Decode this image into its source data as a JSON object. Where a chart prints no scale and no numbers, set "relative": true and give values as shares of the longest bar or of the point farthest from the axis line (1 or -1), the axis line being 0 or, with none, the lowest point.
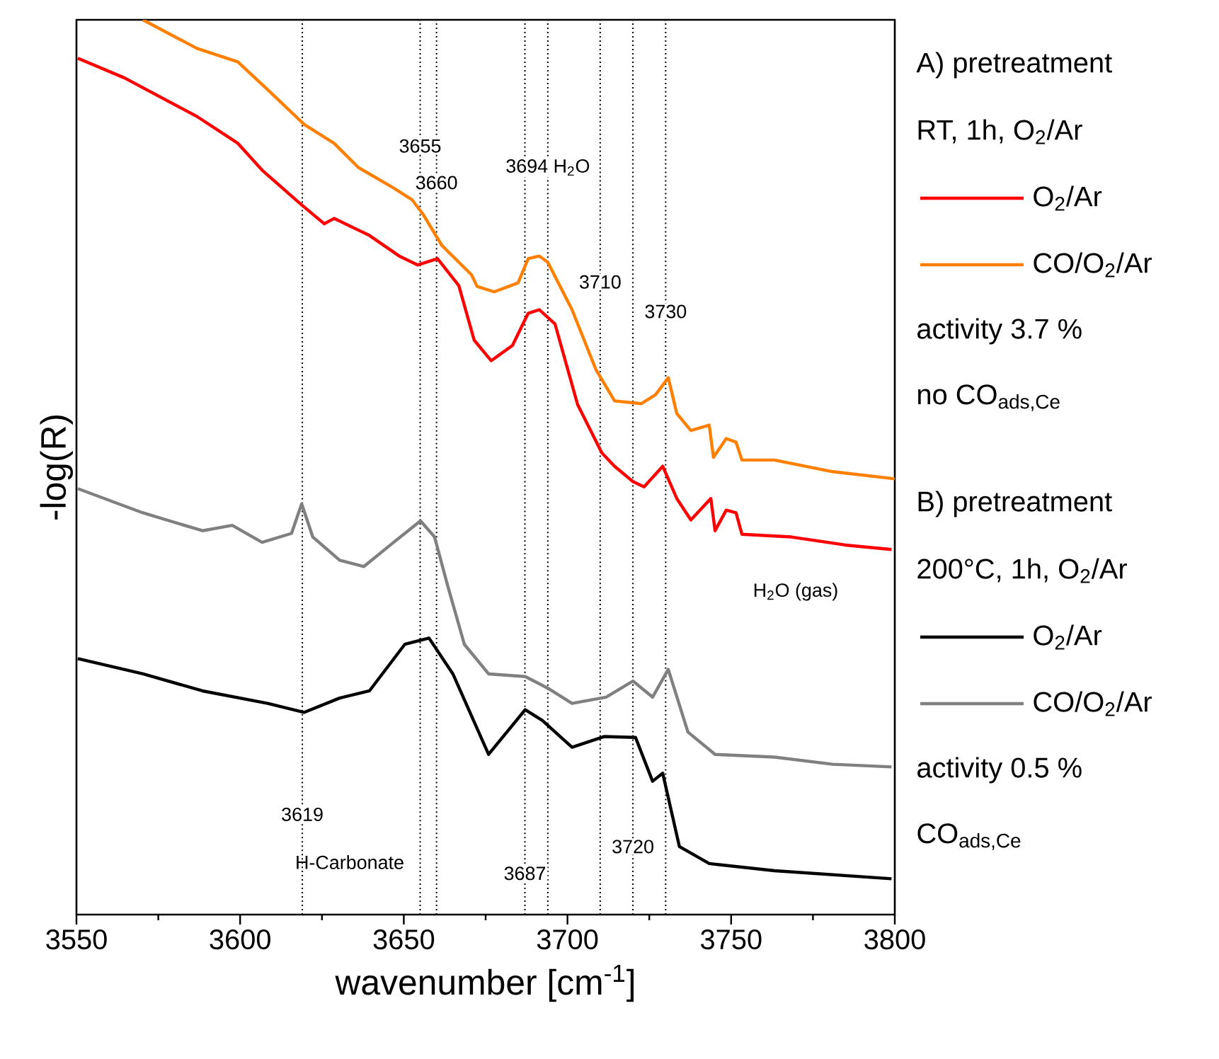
{
  "chart_data": {
    "type": "line",
    "relative": true,
    "xlabel": "wavenumber [cm$^{-1}$]",
    "ylabel": "-log(R)",
    "xlim": [
      3550,
      3800
    ],
    "xticks": [
      3550,
      3600,
      3650,
      3700,
      3750,
      3800
    ],
    "legend": "right",
    "line_style": "solid",
    "marker": "none",
    "series": [
      {
        "name": "O$_{2}$/Ar",
        "color": "#ff0000",
        "x": [
          3550.4,
          3564.7,
          3586.8,
          3599.3,
          3606.7,
          3617.9,
          3625.7,
          3628.7,
          3639.5,
          3648.6,
          3654.2,
          3660.3,
          3666.8,
          3671.5,
          3676.7,
          3683.2,
          3688.0,
          3691.4,
          3696.2,
          3703.1,
          3710.5,
          3714.4,
          3720.0,
          3723.4,
          3729.1,
          3733.4,
          3737.7,
          3743.8,
          3745.1,
          3748.5,
          3751.5,
          3753.3,
          3768.4,
          3784.9,
          3799
        ],
        "values": [
          0.957,
          0.935,
          0.892,
          0.862,
          0.832,
          0.796,
          0.772,
          0.778,
          0.759,
          0.736,
          0.726,
          0.733,
          0.703,
          0.642,
          0.619,
          0.636,
          0.672,
          0.676,
          0.66,
          0.57,
          0.516,
          0.501,
          0.484,
          0.478,
          0.501,
          0.465,
          0.441,
          0.465,
          0.429,
          0.452,
          0.449,
          0.425,
          0.422,
          0.413,
          0.408
        ]
      },
      {
        "name": "CO/O$_{2}$/Ar",
        "color": "#ff8000",
        "x": [
          3570.3,
          3586.8,
          3599.3,
          3608.4,
          3619.6,
          3628.7,
          3636.1,
          3646.9,
          3652.5,
          3656.0,
          3661.6,
          3670.7,
          3672.4,
          3677.6,
          3684.9,
          3688.0,
          3691.4,
          3694.0,
          3701.4,
          3708.7,
          3714.4,
          3722.6,
          3726.9,
          3730.8,
          3733.4,
          3737.7,
          3743.3,
          3744.6,
          3748.5,
          3751.5,
          3753.3,
          3763.2,
          3781.0,
          3800
        ],
        "values": [
          1.0,
          0.968,
          0.953,
          0.922,
          0.883,
          0.862,
          0.835,
          0.812,
          0.799,
          0.782,
          0.748,
          0.715,
          0.702,
          0.696,
          0.706,
          0.733,
          0.736,
          0.729,
          0.676,
          0.609,
          0.574,
          0.571,
          0.581,
          0.6,
          0.56,
          0.541,
          0.547,
          0.511,
          0.532,
          0.528,
          0.508,
          0.508,
          0.495,
          0.487
        ]
      },
      {
        "name": "O$_{2}$/Ar",
        "color": "#000000",
        "x": [
          3550.4,
          3570.3,
          3588.5,
          3608.4,
          3619.6,
          3630.4,
          3639.5,
          3650.3,
          3657.7,
          3665.0,
          3675.9,
          3687.1,
          3692.3,
          3701.4,
          3711.3,
          3720.8,
          3726.0,
          3729.1,
          3734.2,
          3743.3,
          3763.2,
          3799
        ],
        "values": [
          0.286,
          0.269,
          0.25,
          0.236,
          0.226,
          0.242,
          0.25,
          0.302,
          0.309,
          0.269,
          0.179,
          0.229,
          0.217,
          0.187,
          0.199,
          0.198,
          0.149,
          0.158,
          0.076,
          0.057,
          0.049,
          0.04
        ]
      },
      {
        "name": "CO/O$_{2}$/Ar",
        "color": "#808080",
        "x": [
          3550.4,
          3570.3,
          3588.5,
          3597.6,
          3606.7,
          3615.7,
          3618.8,
          3622.2,
          3630.4,
          3637.8,
          3646.9,
          3655.1,
          3659.4,
          3663.3,
          3668.5,
          3675.9,
          3687.1,
          3694.0,
          3701.4,
          3711.8,
          3720.0,
          3726.0,
          3730.8,
          3736.8,
          3745.1,
          3763.2,
          3781.0,
          3799
        ],
        "values": [
          0.476,
          0.449,
          0.429,
          0.435,
          0.416,
          0.426,
          0.459,
          0.422,
          0.396,
          0.389,
          0.416,
          0.44,
          0.422,
          0.369,
          0.302,
          0.269,
          0.266,
          0.253,
          0.236,
          0.243,
          0.261,
          0.243,
          0.274,
          0.204,
          0.179,
          0.176,
          0.168,
          0.165
        ]
      }
    ],
    "ref_lines": [
      {
        "axis": "x",
        "value": 3619,
        "line_style": "dotted"
      },
      {
        "axis": "x",
        "value": 3655,
        "line_style": "dotted"
      },
      {
        "axis": "x",
        "value": 3660,
        "line_style": "dotted"
      },
      {
        "axis": "x",
        "value": 3687,
        "line_style": "dotted"
      },
      {
        "axis": "x",
        "value": 3694,
        "line_style": "dotted"
      },
      {
        "axis": "x",
        "value": 3710,
        "line_style": "dotted"
      },
      {
        "axis": "x",
        "value": 3720,
        "line_style": "dotted"
      },
      {
        "axis": "x",
        "value": 3730,
        "line_style": "dotted"
      }
    ],
    "annotations": [
      "A) pretreatment",
      "RT, 1h, O$_{2}$/Ar",
      "activity 3.7 %",
      "no CO$_{ads,Ce}$",
      "B) pretreatment",
      "200°C, 1h, O$_{2}$/Ar",
      "activity 0.5 %",
      "CO$_{ads,Ce}$",
      "H$_{2}$O (gas)",
      "H-Carbonate",
      {
        "text": "3655",
        "x": 3655,
        "y": 0.859
      },
      {
        "text": "3660",
        "x": 3660,
        "y": 0.818
      },
      {
        "text": "3694 H$_{2}$O",
        "x": 3694,
        "y": 0.835
      },
      {
        "text": "3710",
        "x": 3710,
        "y": 0.707
      },
      {
        "text": "3730",
        "x": 3730,
        "y": 0.674
      },
      {
        "text": "3619",
        "x": 3619,
        "y": 0.112
      },
      {
        "text": "3687",
        "x": 3687,
        "y": 0.046
      },
      {
        "text": "3720",
        "x": 3720,
        "y": 0.076
      }
    ]
  }
}
